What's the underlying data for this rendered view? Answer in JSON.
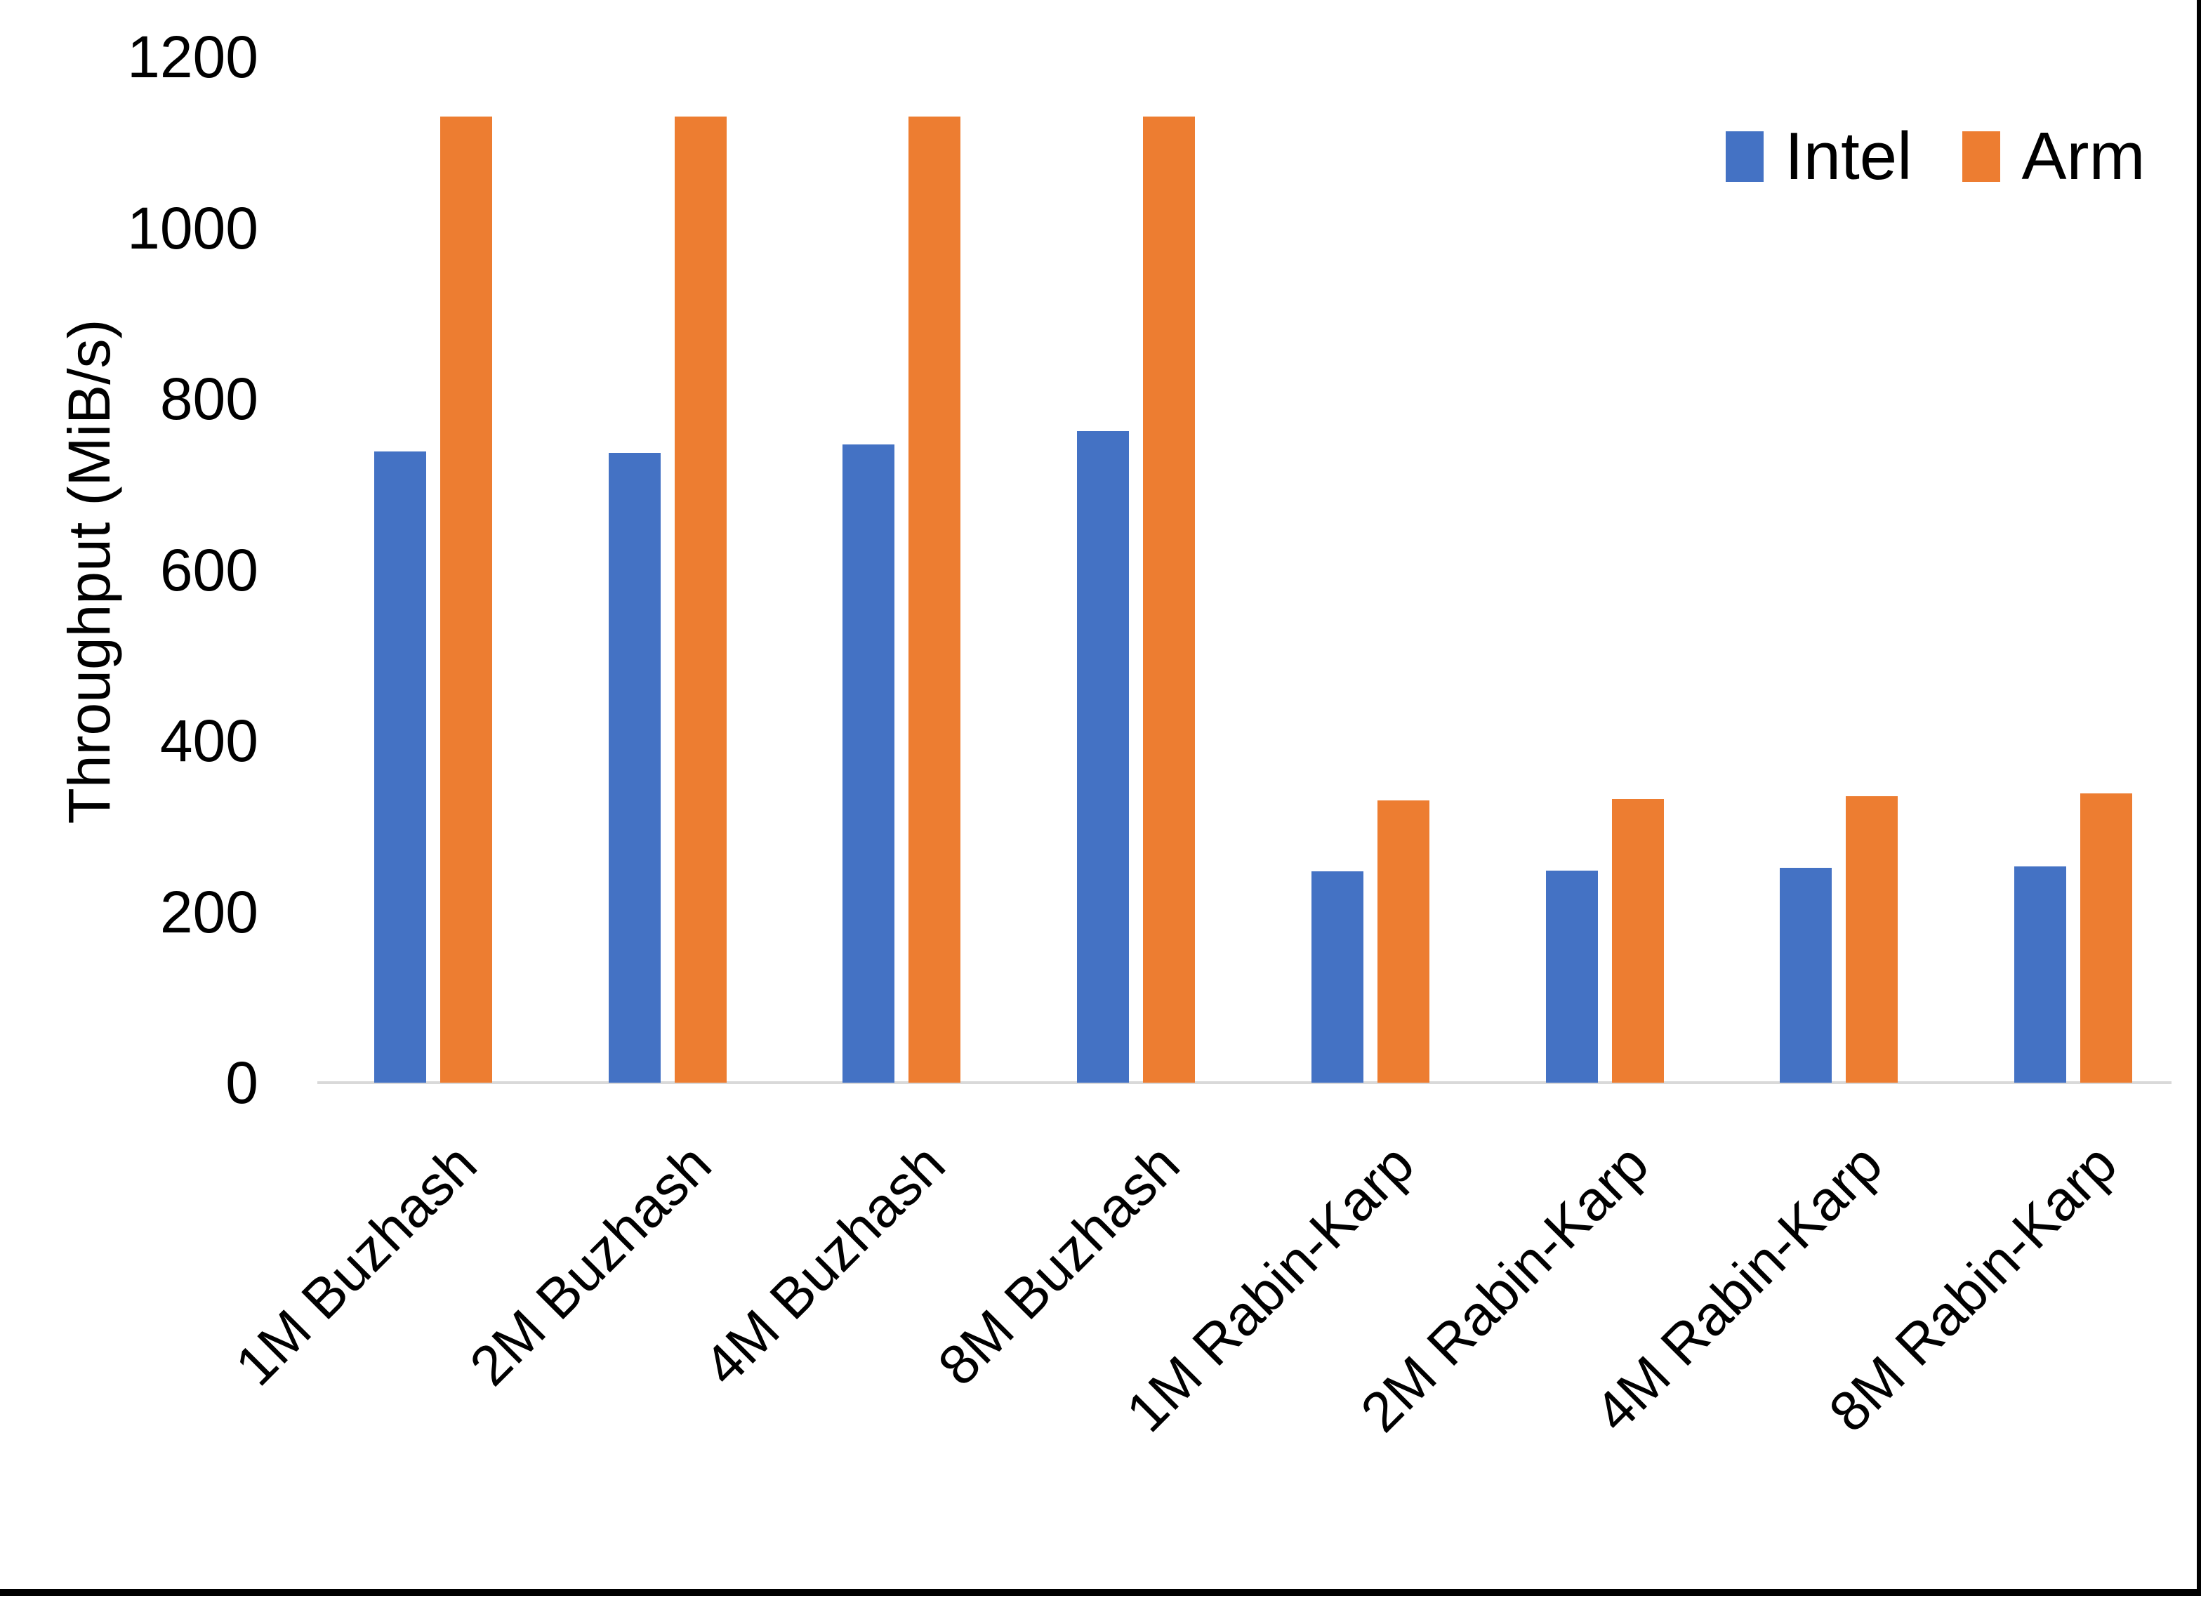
{
  "chart_data": {
    "type": "bar",
    "title": "",
    "ylabel": "Throughput (MiB/s)",
    "xlabel": "",
    "ylim": [
      0,
      1200
    ],
    "yticks": [
      0,
      200,
      400,
      600,
      800,
      1000,
      1200
    ],
    "grid": false,
    "legend_position": "top-right",
    "categories": [
      "1M Buzhash",
      "2M Buzhash",
      "4M Buzhash",
      "8M Buzhash",
      "1M Rabin-Karp",
      "2M Rabin-Karp",
      "4M Rabin-Karp",
      "8M Rabin-Karp"
    ],
    "series": [
      {
        "name": "Intel",
        "color": "#4472C4",
        "values": [
          738,
          737,
          747,
          762,
          247,
          248,
          251,
          253
        ]
      },
      {
        "name": "Arm",
        "color": "#ED7D31",
        "values": [
          1130,
          1130,
          1130,
          1130,
          330,
          332,
          335,
          338
        ]
      }
    ]
  },
  "colors": {
    "intel": "#4472C4",
    "arm": "#ED7D31",
    "axis_line": "#D9D9D9",
    "text": "#000000",
    "frame_border": "#000000"
  }
}
